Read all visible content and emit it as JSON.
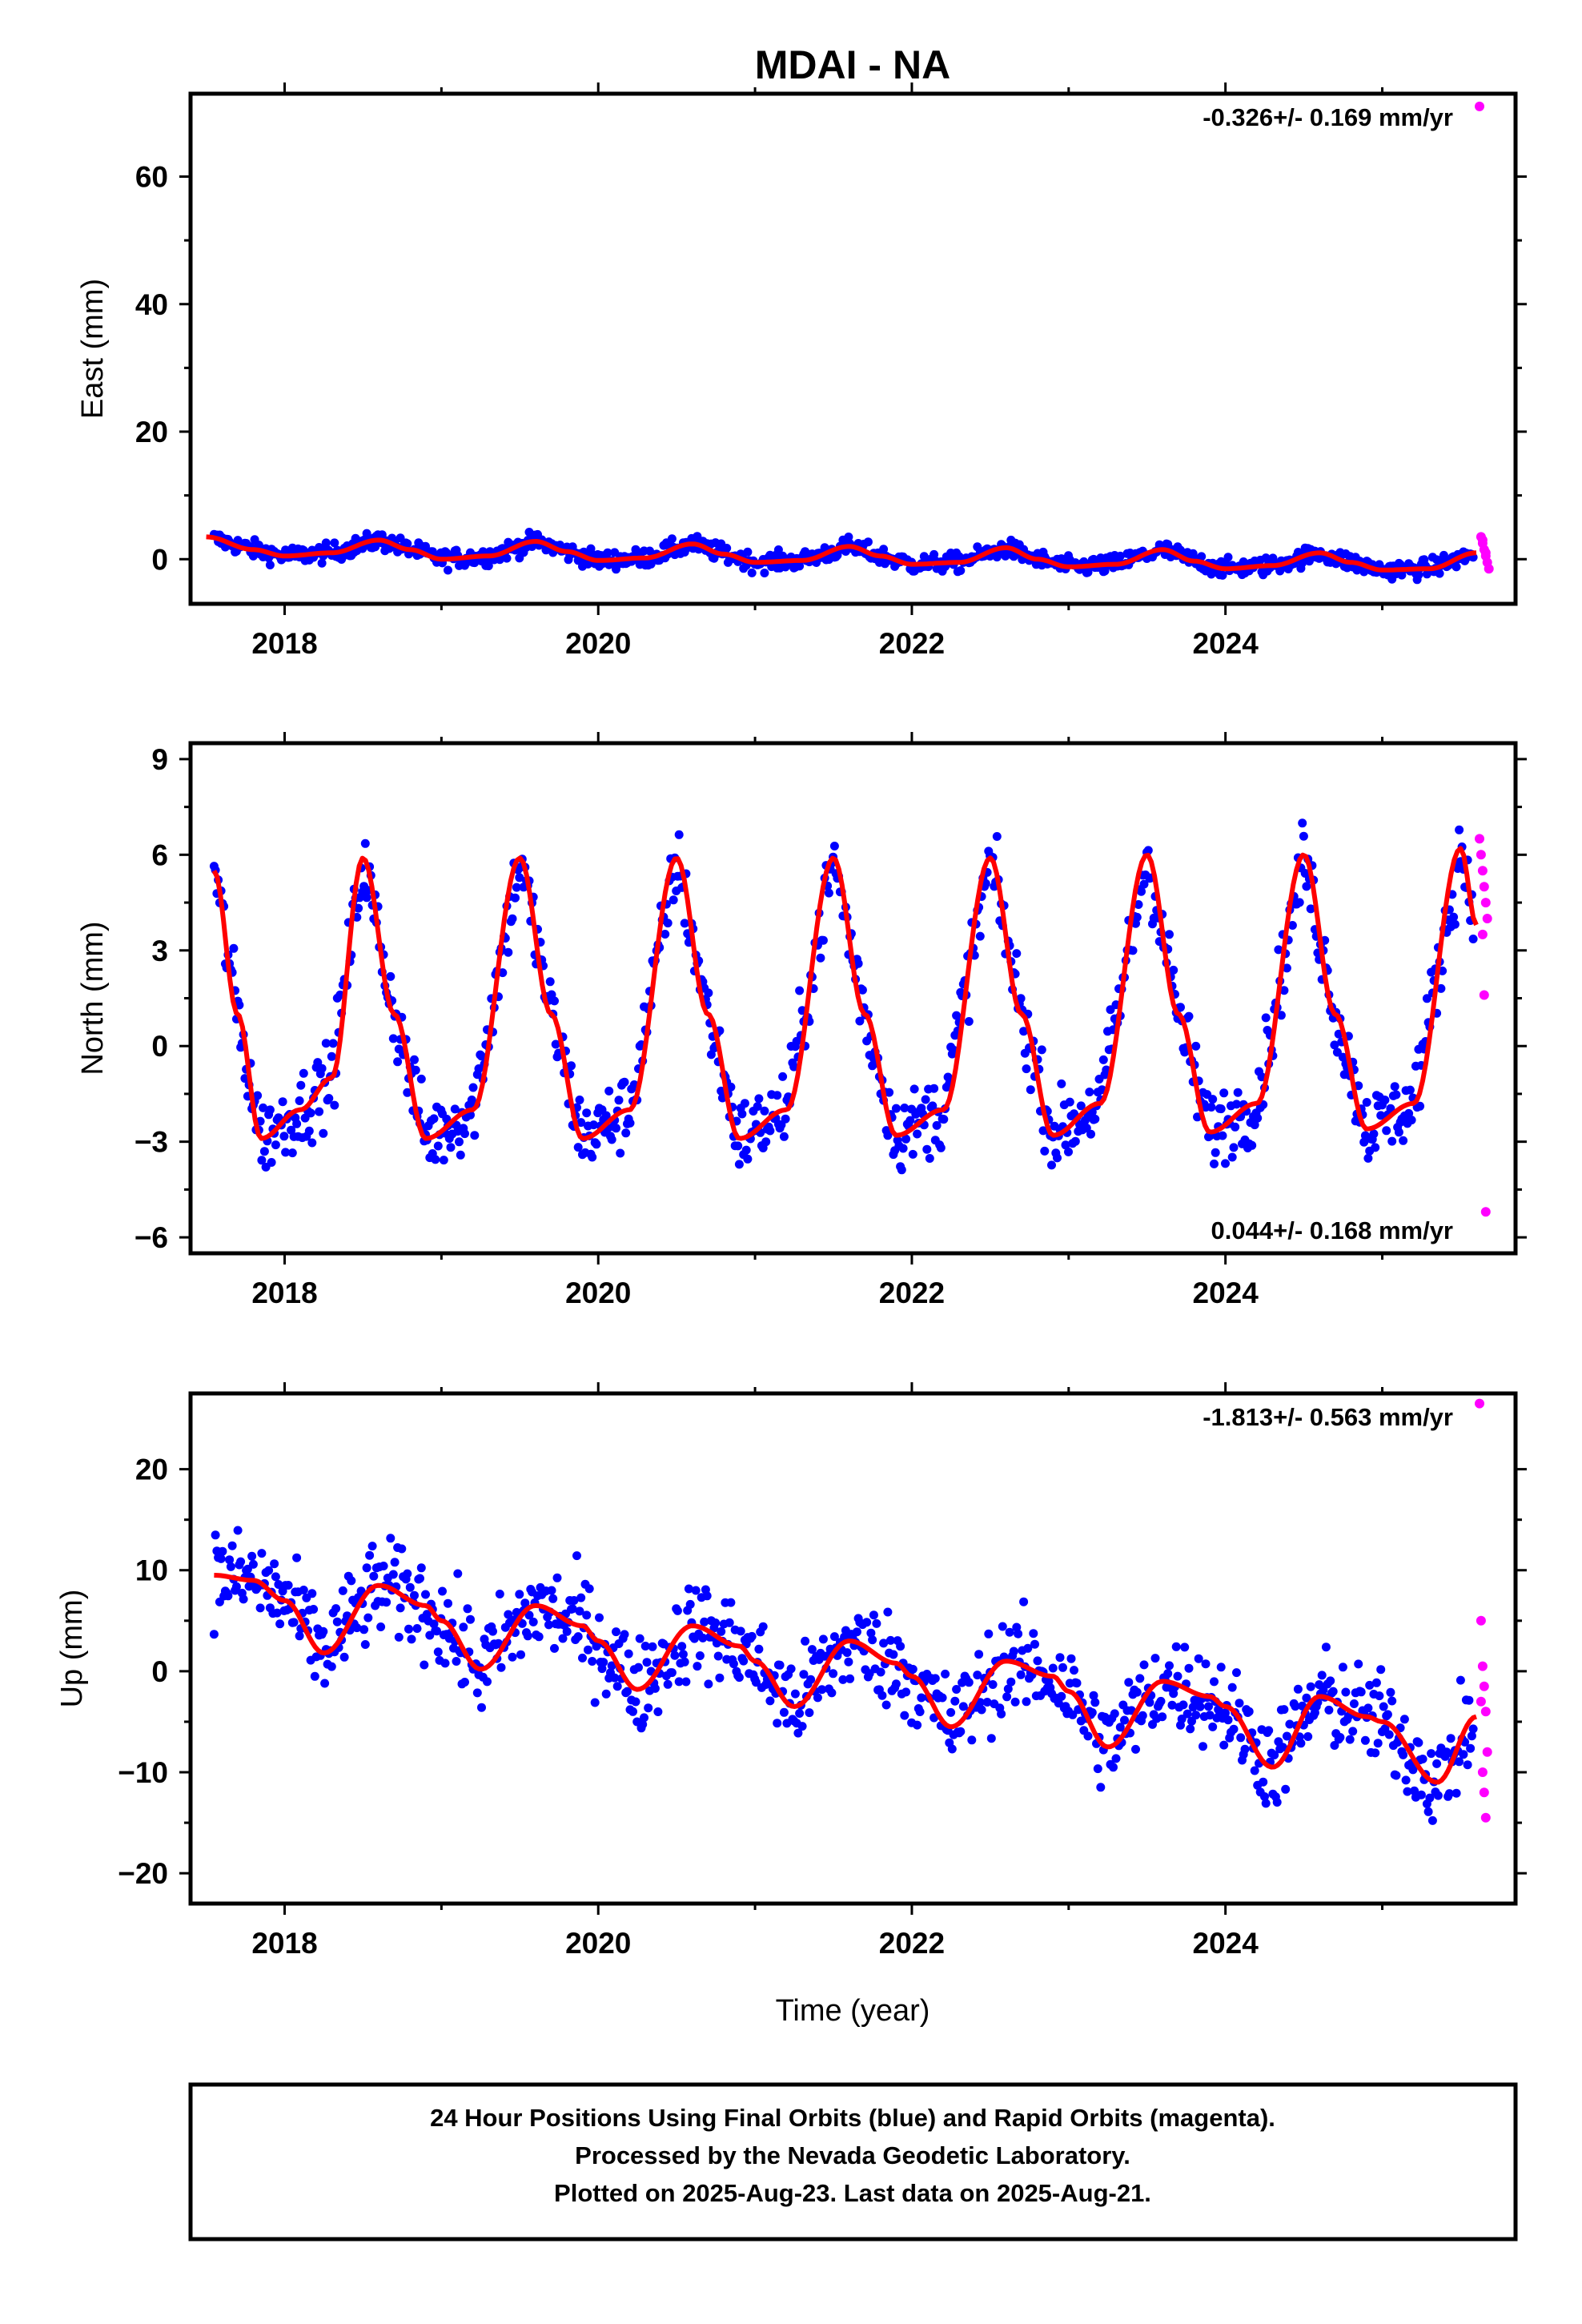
{
  "title": "MDAI - NA",
  "xlabel": "Time (year)",
  "colors": {
    "final": "#0000ff",
    "rapid": "#ff00ff",
    "model": "#ff0000",
    "frame": "#000000"
  },
  "footer": {
    "line1": "24 Hour Positions Using Final Orbits (blue) and Rapid Orbits (magenta).",
    "line2": "Processed by the Nevada Geodetic Laboratory.",
    "line3": "Plotted on 2025-Aug-23. Last data on 2025-Aug-21."
  },
  "chart_data": [
    {
      "type": "scatter",
      "ylabel": "East (mm)",
      "rate_label": "-0.326+/- 0.169 mm/yr",
      "rate_position": "top-right",
      "xlim": [
        2017.4,
        2025.85
      ],
      "ylim": [
        -7,
        73
      ],
      "x_ticks": [
        2018,
        2020,
        2022,
        2024
      ],
      "y_ticks": [
        0,
        20,
        40,
        60
      ],
      "grid": false,
      "model": {
        "name": "model",
        "x": [
          2017.5,
          2017.8,
          2018.0,
          2018.3,
          2018.6,
          2018.8,
          2019.0,
          2019.3,
          2019.6,
          2019.8,
          2020.0,
          2020.3,
          2020.6,
          2020.8,
          2021.0,
          2021.3,
          2021.6,
          2021.8,
          2022.0,
          2022.3,
          2022.6,
          2022.8,
          2023.0,
          2023.3,
          2023.6,
          2023.8,
          2024.0,
          2024.3,
          2024.6,
          2024.8,
          2025.0,
          2025.3,
          2025.6
        ],
        "y": [
          3.5,
          1.5,
          0.5,
          1.0,
          3.0,
          1.5,
          0.0,
          0.5,
          2.8,
          1.2,
          -0.2,
          0.2,
          2.4,
          0.8,
          -0.5,
          -0.2,
          2.0,
          0.5,
          -0.8,
          -0.5,
          1.8,
          0.0,
          -1.2,
          -0.8,
          1.5,
          -0.3,
          -1.5,
          -1.0,
          1.0,
          -0.5,
          -1.7,
          -1.5,
          1.0
        ]
      },
      "final_trend": {
        "start": [
          2017.55,
          3.5
        ],
        "end": [
          2025.58,
          0.5
        ],
        "amplitude": 1.5,
        "scatter": 1.2
      },
      "rapid": {
        "x": [
          2025.62,
          2025.63,
          2025.64,
          2025.65,
          2025.66,
          2025.67,
          2025.68,
          2025.64,
          2025.66
        ],
        "y": [
          71.0,
          3.5,
          2.5,
          1.5,
          0.5,
          -0.5,
          -1.5,
          3.0,
          1.0
        ]
      }
    },
    {
      "type": "scatter",
      "ylabel": "North (mm)",
      "rate_label": "0.044+/- 0.168 mm/yr",
      "rate_position": "bottom-right",
      "xlim": [
        2017.4,
        2025.85
      ],
      "ylim": [
        -6.5,
        9.5
      ],
      "x_ticks": [
        2018,
        2020,
        2022,
        2024
      ],
      "y_ticks": [
        -6,
        -3,
        0,
        3,
        6,
        9
      ],
      "grid": false,
      "model": {
        "name": "model",
        "x": [
          2017.55,
          2017.7,
          2017.85,
          2018.1,
          2018.3,
          2018.5,
          2018.7,
          2018.9,
          2019.2,
          2019.5,
          2019.7,
          2019.9,
          2020.2,
          2020.5,
          2020.7,
          2020.9,
          2021.2,
          2021.5,
          2021.7,
          2021.9,
          2022.2,
          2022.5,
          2022.7,
          2022.9,
          2023.2,
          2023.5,
          2023.7,
          2023.9,
          2024.2,
          2024.5,
          2024.7,
          2024.9,
          2025.2,
          2025.5,
          2025.6
        ],
        "y": [
          5.5,
          1.0,
          -2.9,
          -2.0,
          -1.0,
          5.9,
          1.0,
          -2.9,
          -2.0,
          5.9,
          1.0,
          -2.9,
          -2.0,
          5.9,
          1.0,
          -2.9,
          -2.0,
          5.9,
          1.0,
          -2.8,
          -2.0,
          5.9,
          1.0,
          -2.8,
          -1.8,
          6.0,
          1.0,
          -2.7,
          -1.8,
          6.0,
          1.0,
          -2.6,
          -1.8,
          6.2,
          3.8
        ]
      },
      "final_trend": {
        "start": [
          2017.55,
          1.5
        ],
        "end": [
          2025.58,
          1.5
        ],
        "amplitude": 4.5,
        "scatter": 1.0
      },
      "rapid": {
        "x": [
          2025.62,
          2025.63,
          2025.64,
          2025.65,
          2025.66,
          2025.67,
          2025.64,
          2025.65,
          2025.66
        ],
        "y": [
          6.5,
          6.0,
          5.5,
          5.0,
          4.5,
          4.0,
          3.5,
          1.6,
          -5.2
        ]
      }
    },
    {
      "type": "scatter",
      "ylabel": "Up (mm)",
      "rate_label": "-1.813+/- 0.563 mm/yr",
      "rate_position": "top-right",
      "xlim": [
        2017.4,
        2025.85
      ],
      "ylim": [
        -23,
        27.5
      ],
      "x_ticks": [
        2018,
        2020,
        2022,
        2024
      ],
      "y_ticks": [
        -20,
        -10,
        0,
        10,
        20
      ],
      "grid": false,
      "model": {
        "name": "model",
        "x": [
          2017.55,
          2017.8,
          2018.0,
          2018.25,
          2018.6,
          2018.9,
          2019.0,
          2019.25,
          2019.6,
          2019.9,
          2020.0,
          2020.25,
          2020.6,
          2020.9,
          2021.0,
          2021.25,
          2021.6,
          2021.9,
          2022.0,
          2022.25,
          2022.6,
          2022.9,
          2023.0,
          2023.25,
          2023.6,
          2023.9,
          2024.0,
          2024.3,
          2024.6,
          2024.9,
          2025.0,
          2025.35,
          2025.6
        ],
        "y": [
          9.5,
          9.0,
          7.0,
          1.8,
          8.5,
          6.5,
          5.0,
          0.2,
          6.5,
          4.5,
          3.0,
          -1.8,
          4.5,
          2.5,
          1.0,
          -3.5,
          3.0,
          0.8,
          -0.5,
          -5.5,
          1.0,
          -0.5,
          -2.0,
          -7.5,
          -1.0,
          -2.5,
          -3.5,
          -9.5,
          -2.5,
          -4.5,
          -5.0,
          -11.0,
          -4.5
        ]
      },
      "final_trend": {
        "start": [
          2017.55,
          7.0
        ],
        "end": [
          2025.58,
          -7.5
        ],
        "amplitude": 3.0,
        "scatter": 4.0
      },
      "rapid": {
        "x": [
          2025.62,
          2025.63,
          2025.64,
          2025.65,
          2025.66,
          2025.67,
          2025.64,
          2025.65,
          2025.66,
          2025.63
        ],
        "y": [
          26.5,
          5.0,
          0.5,
          -1.5,
          -4.0,
          -8.0,
          -10.0,
          -12.0,
          -14.5,
          -3.0
        ]
      }
    }
  ]
}
